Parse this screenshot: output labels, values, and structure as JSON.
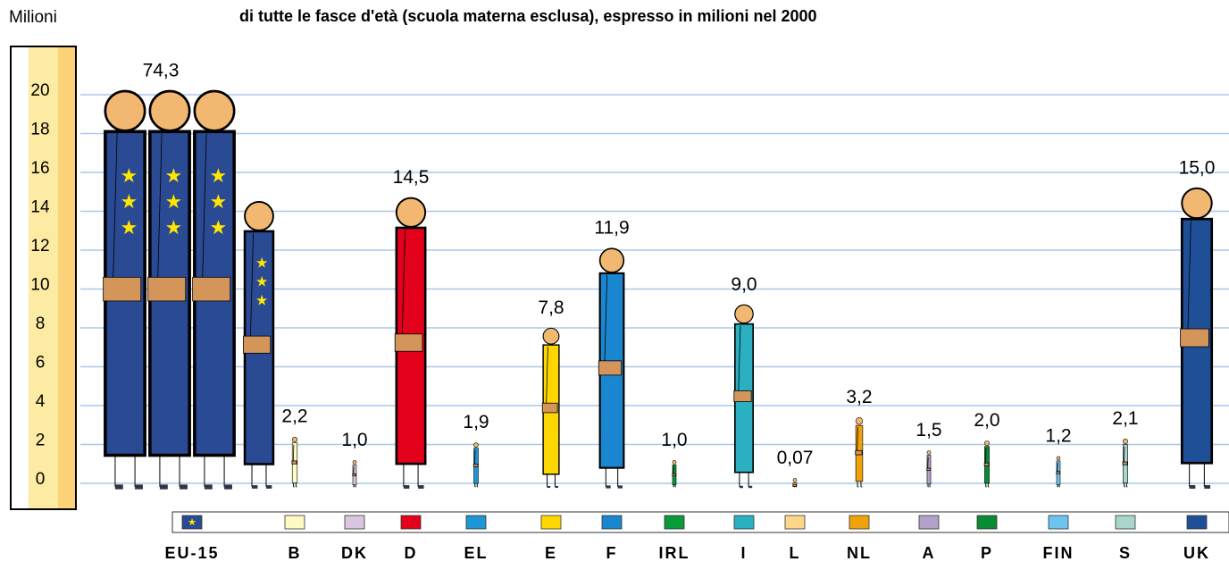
{
  "chart_data": {
    "type": "pictogram",
    "title": "di tutte le fasce d'età (scuola materna esclusa), espresso in milioni nel 2000",
    "y_label": "Milioni",
    "categories": [
      "EU-15",
      "B",
      "DK",
      "D",
      "EL",
      "E",
      "F",
      "IRL",
      "I",
      "L",
      "NL",
      "A",
      "P",
      "FIN",
      "S",
      "UK"
    ],
    "values": [
      74.3,
      2.2,
      1.0,
      14.5,
      1.9,
      7.8,
      11.9,
      1.0,
      9.0,
      0.07,
      3.2,
      1.5,
      2.0,
      1.2,
      2.1,
      15.0
    ],
    "value_labels": [
      "74,3",
      "2,2",
      "1,0",
      "14,5",
      "1,9",
      "7,8",
      "11,9",
      "1,0",
      "9,0",
      "0,07",
      "3,2",
      "1,5",
      "2,0",
      "1,2",
      "2,1",
      "15,0"
    ],
    "colors": [
      "#2a4a94",
      "#fff9c4",
      "#d9c6e0",
      "#e3001b",
      "#1e96d6",
      "#ffd700",
      "#1a86cf",
      "#0a9a3a",
      "#2ab0c0",
      "#fcd78a",
      "#f0a20a",
      "#b3a1cc",
      "#098a35",
      "#6cc4ef",
      "#a9d6cc",
      "#1f4f96"
    ],
    "ylim": [
      0,
      20
    ],
    "yticks": [
      0,
      2,
      4,
      6,
      8,
      10,
      12,
      14,
      16,
      18,
      20
    ],
    "grid": true
  }
}
